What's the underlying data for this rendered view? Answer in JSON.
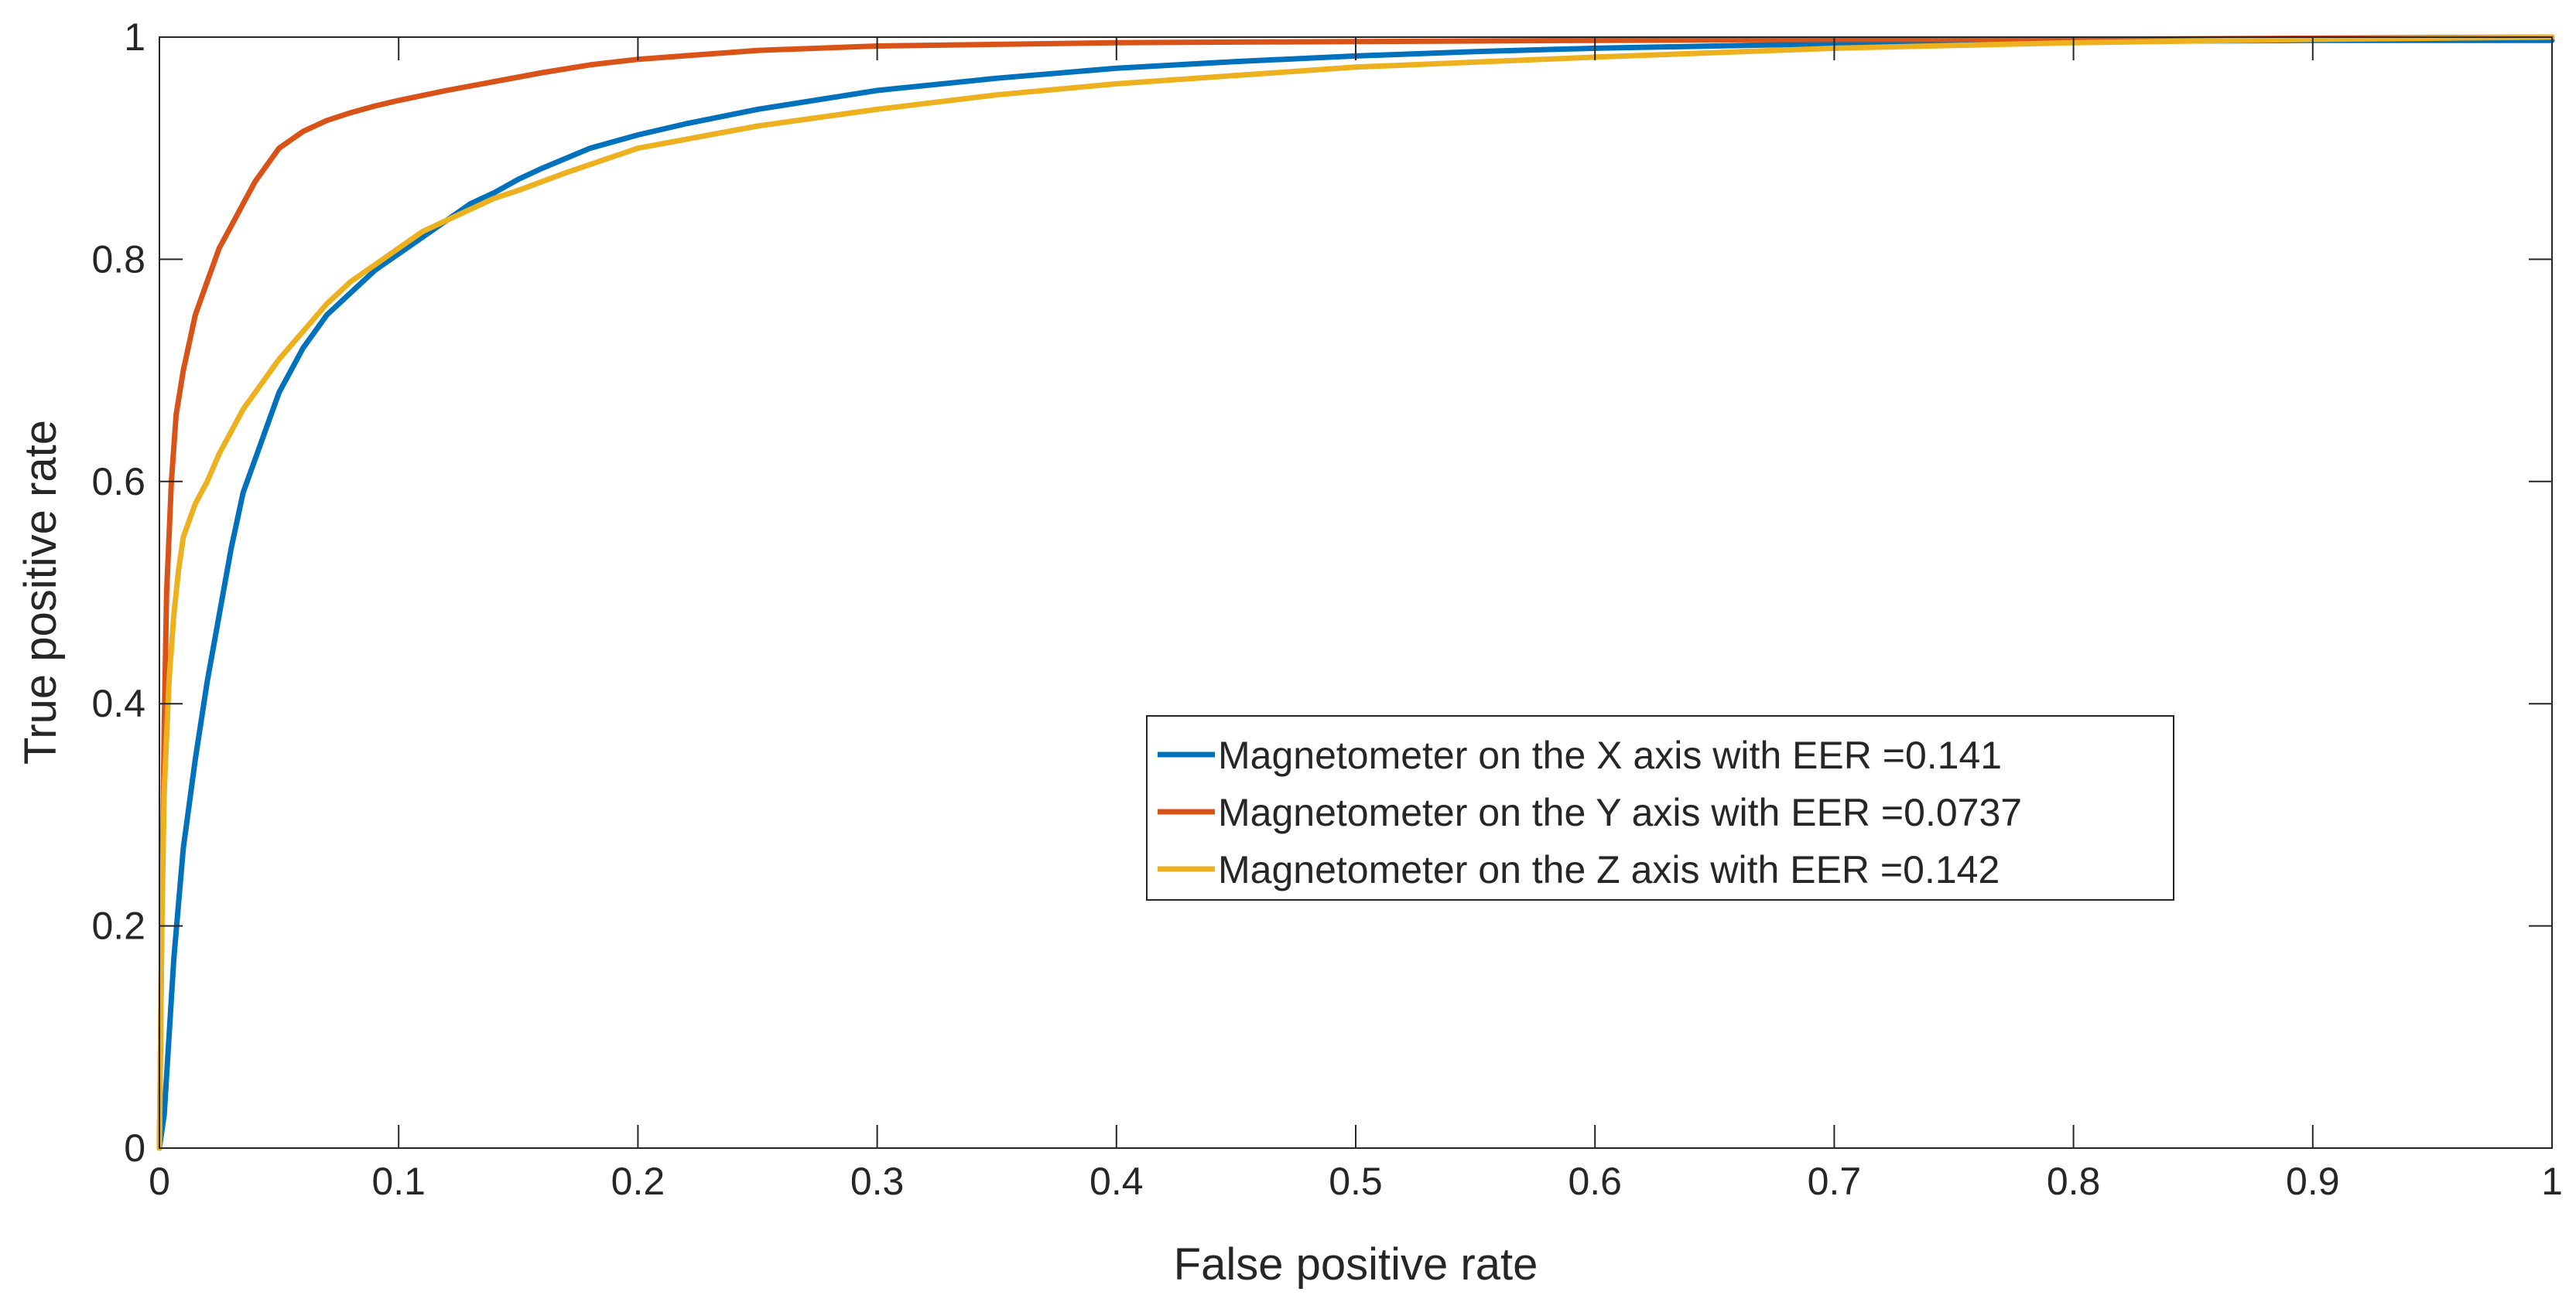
{
  "chart_data": {
    "type": "line",
    "title": "",
    "xlabel": "False positive rate",
    "ylabel": "True positive rate",
    "xlim": [
      0,
      1
    ],
    "ylim": [
      0,
      1
    ],
    "xticks": [
      0,
      0.1,
      0.2,
      0.3,
      0.4,
      0.5,
      0.6,
      0.7,
      0.8,
      0.9,
      1
    ],
    "xtick_labels": [
      "0",
      "0.1",
      "0.2",
      "0.3",
      "0.4",
      "0.5",
      "0.6",
      "0.7",
      "0.8",
      "0.9",
      "1"
    ],
    "yticks": [
      0,
      0.2,
      0.4,
      0.6,
      0.8,
      1
    ],
    "ytick_labels": [
      "0",
      "0.2",
      "0.4",
      "0.6",
      "0.8",
      "1"
    ],
    "grid": false,
    "legend_position": "center-right",
    "series": [
      {
        "name": "Magnetometer on the X axis with EER =0.141",
        "color": "#0072BD",
        "x": [
          0,
          0.002,
          0.004,
          0.006,
          0.008,
          0.01,
          0.015,
          0.02,
          0.025,
          0.03,
          0.035,
          0.04,
          0.045,
          0.05,
          0.055,
          0.06,
          0.065,
          0.07,
          0.08,
          0.09,
          0.1,
          0.11,
          0.12,
          0.13,
          0.14,
          0.15,
          0.16,
          0.18,
          0.2,
          0.22,
          0.25,
          0.3,
          0.35,
          0.4,
          0.45,
          0.5,
          0.55,
          0.6,
          0.65,
          0.7,
          0.8,
          0.9,
          1.0
        ],
        "y": [
          0,
          0.03,
          0.1,
          0.17,
          0.22,
          0.27,
          0.35,
          0.42,
          0.48,
          0.54,
          0.59,
          0.62,
          0.65,
          0.68,
          0.7,
          0.72,
          0.735,
          0.75,
          0.77,
          0.79,
          0.805,
          0.82,
          0.835,
          0.85,
          0.86,
          0.872,
          0.882,
          0.9,
          0.912,
          0.922,
          0.935,
          0.952,
          0.963,
          0.972,
          0.978,
          0.983,
          0.987,
          0.99,
          0.992,
          0.994,
          0.996,
          0.997,
          0.997
        ]
      },
      {
        "name": "Magnetometer on the Y axis with EER =0.0737",
        "color": "#D95319",
        "x": [
          0,
          0.001,
          0.002,
          0.003,
          0.005,
          0.007,
          0.01,
          0.015,
          0.02,
          0.025,
          0.03,
          0.035,
          0.04,
          0.045,
          0.05,
          0.06,
          0.07,
          0.08,
          0.09,
          0.1,
          0.12,
          0.14,
          0.16,
          0.18,
          0.2,
          0.25,
          0.3,
          0.4,
          0.5,
          0.6,
          0.7,
          0.8,
          0.9,
          1.0
        ],
        "y": [
          0,
          0.2,
          0.38,
          0.5,
          0.6,
          0.66,
          0.7,
          0.75,
          0.78,
          0.81,
          0.83,
          0.85,
          0.87,
          0.885,
          0.9,
          0.915,
          0.925,
          0.932,
          0.938,
          0.943,
          0.952,
          0.96,
          0.968,
          0.975,
          0.98,
          0.988,
          0.992,
          0.995,
          0.996,
          0.997,
          0.998,
          0.998,
          0.999,
          1.0
        ]
      },
      {
        "name": "Magnetometer on the Z axis with EER =0.142",
        "color": "#EDB120",
        "x": [
          0,
          0.001,
          0.002,
          0.004,
          0.006,
          0.008,
          0.01,
          0.015,
          0.02,
          0.025,
          0.03,
          0.035,
          0.04,
          0.045,
          0.05,
          0.06,
          0.07,
          0.08,
          0.09,
          0.1,
          0.11,
          0.12,
          0.13,
          0.14,
          0.15,
          0.17,
          0.2,
          0.25,
          0.3,
          0.35,
          0.4,
          0.5,
          0.6,
          0.7,
          0.8,
          0.9,
          1.0
        ],
        "y": [
          0,
          0.2,
          0.32,
          0.42,
          0.48,
          0.52,
          0.55,
          0.58,
          0.6,
          0.625,
          0.645,
          0.665,
          0.68,
          0.695,
          0.71,
          0.735,
          0.76,
          0.78,
          0.795,
          0.81,
          0.825,
          0.835,
          0.845,
          0.855,
          0.862,
          0.878,
          0.9,
          0.92,
          0.935,
          0.948,
          0.958,
          0.973,
          0.982,
          0.99,
          0.995,
          0.998,
          1.0
        ]
      }
    ]
  }
}
